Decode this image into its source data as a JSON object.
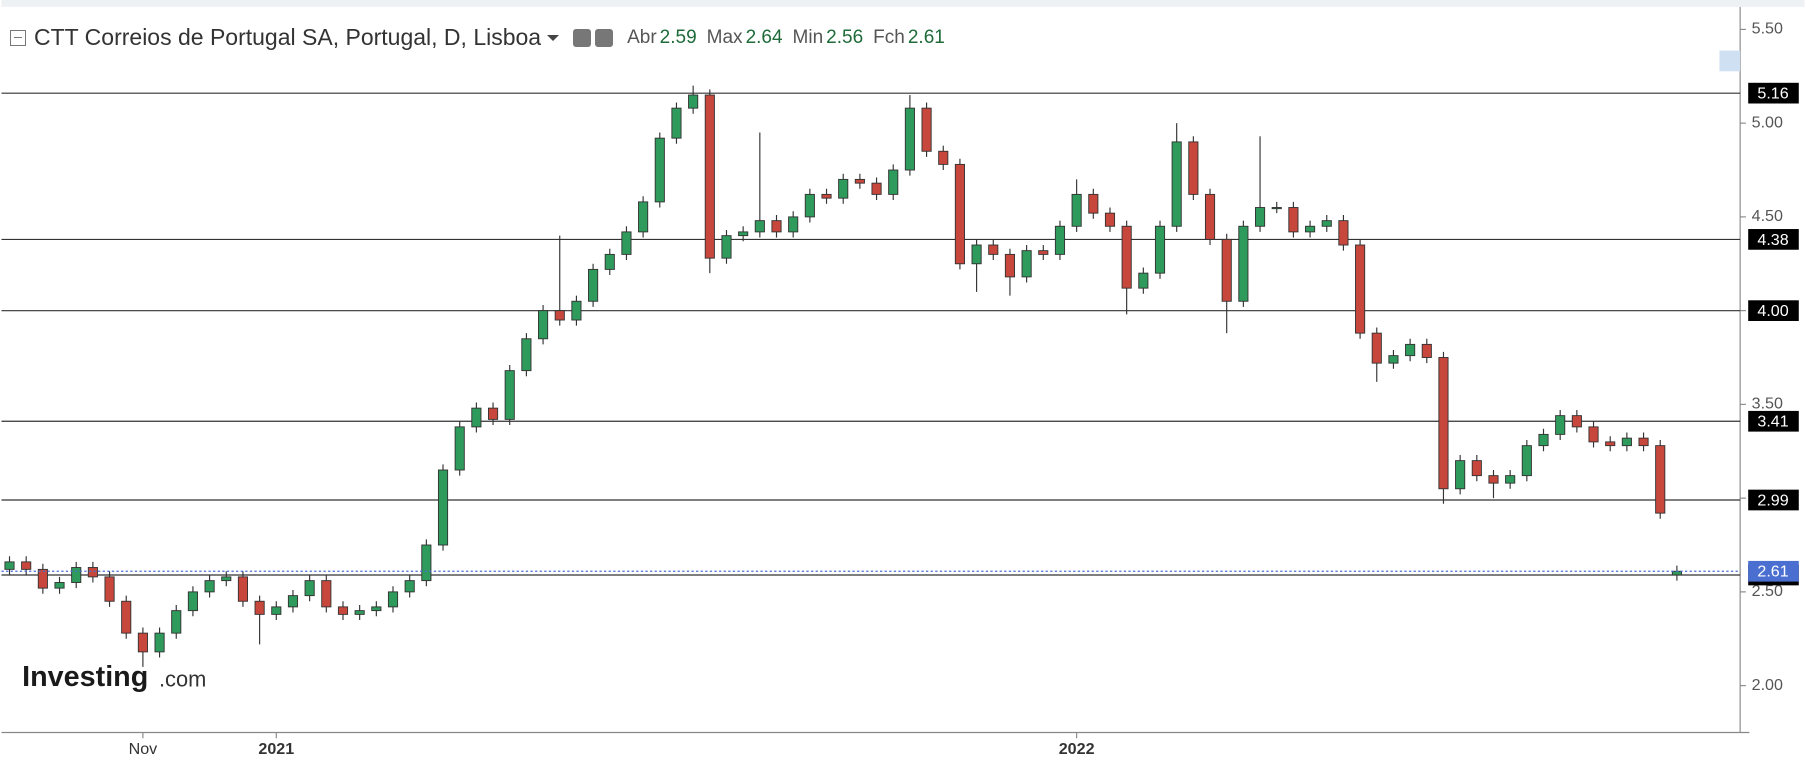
{
  "chart_data": {
    "type": "candlestick",
    "title": "CTT Correios de Portugal SA, Portugal, D, Lisboa",
    "ohlc_labels": [
      "Abr",
      "Max",
      "Min",
      "Fch"
    ],
    "watermark": [
      "Investing",
      ".com"
    ],
    "categories": [
      null,
      null,
      null,
      null,
      null,
      null,
      null,
      null,
      "Nov",
      null,
      null,
      null,
      null,
      null,
      null,
      null,
      "2021",
      null,
      null,
      null,
      null,
      null,
      null,
      null,
      null,
      null,
      null,
      null,
      null,
      null,
      null,
      null,
      null,
      null,
      null,
      null,
      null,
      null,
      null,
      null,
      null,
      null,
      null,
      null,
      null,
      null,
      null,
      null,
      null,
      null,
      null,
      null,
      null,
      null,
      null,
      null,
      null,
      null,
      null,
      null,
      null,
      null,
      null,
      null,
      "2022",
      null,
      null,
      null,
      null,
      null,
      null,
      null,
      null,
      null,
      null,
      null,
      null,
      null,
      null,
      null,
      null,
      null,
      null,
      null,
      null,
      null,
      null,
      null,
      null,
      null,
      null,
      null,
      null,
      null,
      null,
      null,
      null,
      null,
      null,
      null,
      null
    ],
    "open": [
      2.62,
      2.66,
      2.62,
      2.52,
      2.55,
      2.63,
      2.58,
      2.45,
      2.28,
      2.18,
      2.28,
      2.4,
      2.5,
      2.56,
      2.58,
      2.45,
      2.38,
      2.42,
      2.48,
      2.56,
      2.42,
      2.38,
      2.4,
      2.42,
      2.5,
      2.56,
      2.75,
      3.15,
      3.38,
      3.48,
      3.42,
      3.68,
      3.85,
      4.0,
      3.95,
      4.05,
      4.22,
      4.3,
      4.42,
      4.58,
      4.92,
      5.08,
      5.15,
      4.28,
      4.4,
      4.42,
      4.48,
      4.42,
      4.5,
      4.62,
      4.6,
      4.7,
      4.68,
      4.62,
      4.75,
      5.08,
      4.85,
      4.78,
      4.25,
      4.35,
      4.3,
      4.18,
      4.32,
      4.3,
      4.45,
      4.62,
      4.52,
      4.45,
      4.12,
      4.2,
      4.45,
      4.9,
      4.62,
      4.38,
      4.05,
      4.45,
      4.55,
      4.55,
      4.42,
      4.45,
      4.48,
      4.35,
      3.88,
      3.72,
      3.76,
      3.82,
      3.75,
      3.05,
      3.2,
      3.12,
      3.08,
      3.12,
      3.28,
      3.34,
      3.44,
      3.38,
      3.3,
      3.28,
      3.32,
      3.28,
      2.59
    ],
    "high": [
      2.69,
      2.69,
      2.65,
      2.58,
      2.66,
      2.66,
      2.61,
      2.48,
      2.31,
      2.31,
      2.43,
      2.53,
      2.59,
      2.61,
      2.61,
      2.48,
      2.45,
      2.51,
      2.59,
      2.59,
      2.45,
      2.43,
      2.45,
      2.53,
      2.59,
      2.78,
      3.18,
      3.41,
      3.51,
      3.51,
      3.71,
      3.88,
      4.03,
      4.4,
      4.08,
      4.25,
      4.33,
      4.45,
      4.61,
      4.95,
      5.11,
      5.2,
      5.18,
      4.43,
      4.45,
      4.95,
      4.51,
      4.53,
      4.65,
      4.65,
      4.73,
      4.73,
      4.71,
      4.78,
      5.15,
      5.11,
      4.88,
      4.81,
      4.38,
      4.38,
      4.33,
      4.35,
      4.35,
      4.48,
      4.7,
      4.65,
      4.55,
      4.48,
      4.23,
      4.48,
      5.0,
      4.93,
      4.65,
      4.41,
      4.48,
      4.93,
      4.58,
      4.58,
      4.48,
      4.51,
      4.51,
      4.38,
      3.91,
      3.79,
      3.85,
      3.85,
      3.78,
      3.23,
      3.23,
      3.15,
      3.15,
      3.31,
      3.37,
      3.47,
      3.47,
      3.41,
      3.33,
      3.35,
      3.35,
      3.31,
      2.64
    ],
    "low": [
      2.59,
      2.59,
      2.49,
      2.49,
      2.52,
      2.55,
      2.42,
      2.25,
      2.1,
      2.15,
      2.25,
      2.37,
      2.47,
      2.53,
      2.42,
      2.22,
      2.35,
      2.39,
      2.45,
      2.39,
      2.35,
      2.35,
      2.37,
      2.39,
      2.47,
      2.53,
      2.72,
      3.12,
      3.35,
      3.39,
      3.39,
      3.65,
      3.82,
      3.92,
      3.92,
      4.02,
      4.19,
      4.27,
      4.39,
      4.55,
      4.89,
      5.05,
      4.2,
      4.25,
      4.37,
      4.39,
      4.39,
      4.39,
      4.47,
      4.57,
      4.57,
      4.65,
      4.59,
      4.59,
      4.72,
      4.82,
      4.75,
      4.22,
      4.1,
      4.27,
      4.08,
      4.15,
      4.27,
      4.27,
      4.42,
      4.49,
      4.42,
      3.98,
      4.09,
      4.17,
      4.42,
      4.59,
      4.35,
      3.88,
      4.02,
      4.42,
      4.52,
      4.39,
      4.39,
      4.42,
      4.32,
      3.85,
      3.62,
      3.69,
      3.73,
      3.72,
      2.97,
      3.02,
      3.09,
      3.0,
      3.05,
      3.09,
      3.25,
      3.31,
      3.35,
      3.27,
      3.25,
      3.25,
      3.25,
      2.89,
      2.56
    ],
    "close": [
      2.66,
      2.62,
      2.52,
      2.55,
      2.63,
      2.58,
      2.45,
      2.28,
      2.18,
      2.28,
      2.4,
      2.5,
      2.56,
      2.58,
      2.45,
      2.38,
      2.42,
      2.48,
      2.56,
      2.42,
      2.38,
      2.4,
      2.42,
      2.5,
      2.56,
      2.75,
      3.15,
      3.38,
      3.48,
      3.42,
      3.68,
      3.85,
      4.0,
      3.95,
      4.05,
      4.22,
      4.3,
      4.42,
      4.58,
      4.92,
      5.08,
      5.15,
      4.28,
      4.4,
      4.42,
      4.48,
      4.42,
      4.5,
      4.62,
      4.6,
      4.7,
      4.68,
      4.62,
      4.75,
      5.08,
      4.85,
      4.78,
      4.25,
      4.35,
      4.3,
      4.18,
      4.32,
      4.3,
      4.45,
      4.62,
      4.52,
      4.45,
      4.12,
      4.2,
      4.45,
      4.9,
      4.62,
      4.38,
      4.05,
      4.45,
      4.55,
      4.55,
      4.42,
      4.45,
      4.48,
      4.35,
      3.88,
      3.72,
      3.76,
      3.82,
      3.75,
      3.05,
      3.2,
      3.12,
      3.08,
      3.12,
      3.28,
      3.34,
      3.44,
      3.38,
      3.3,
      3.28,
      3.32,
      3.28,
      2.92,
      2.61
    ],
    "up_color": "#2e9a5c",
    "down_color": "#c8473d",
    "levels": [
      5.16,
      4.38,
      {
        "value": 4,
        "label": "4.00"
      },
      3.41,
      2.99,
      2.59
    ],
    "ylim": [
      1.75,
      5.62
    ],
    "yticks": [
      {
        "value": 2,
        "label": "2.00"
      },
      {
        "value": 2.5,
        "label": "2.50"
      },
      {
        "value": 3,
        "label": "3.00"
      },
      {
        "value": 3.5,
        "label": "3.50"
      },
      {
        "value": 4,
        "label": "4.00"
      },
      {
        "value": 4.5,
        "label": "4.50"
      },
      {
        "value": 5,
        "label": "5.00"
      },
      {
        "value": 5.5,
        "label": "5.50"
      }
    ]
  }
}
